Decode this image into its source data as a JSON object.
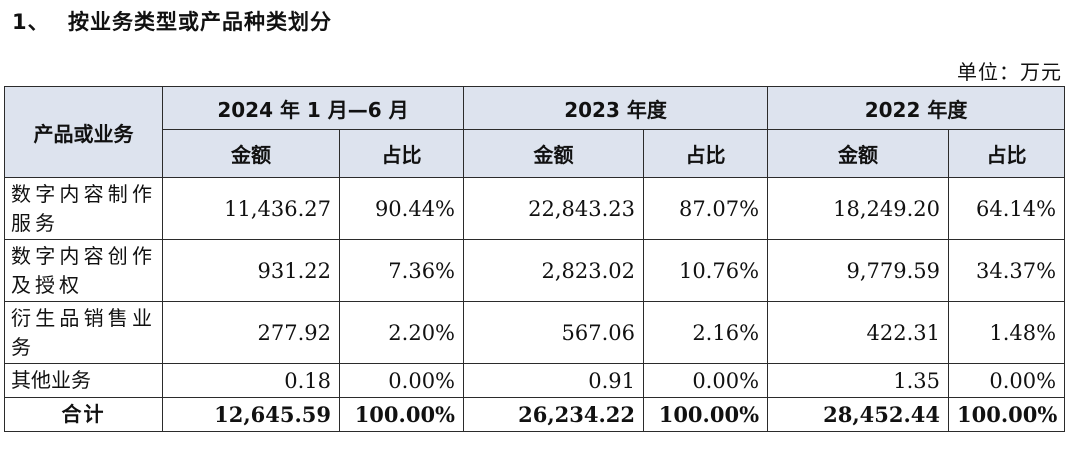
{
  "heading": {
    "number": "1、",
    "title": "按业务类型或产品种类划分"
  },
  "unit": "单位：万元",
  "table": {
    "row_header": "产品或业务",
    "periods": [
      "2024 年 1 月—6 月",
      "2023 年度",
      "2022 年度"
    ],
    "sub_headers": [
      "金额",
      "占比",
      "金额",
      "占比",
      "金额",
      "占比"
    ],
    "rows": [
      {
        "name": "数字内容制作服务",
        "cells": [
          "11,436.27",
          "90.44%",
          "22,843.23",
          "87.07%",
          "18,249.20",
          "64.14%"
        ]
      },
      {
        "name": "数字内容创作及授权",
        "cells": [
          "931.22",
          "7.36%",
          "2,823.02",
          "10.76%",
          "9,779.59",
          "34.37%"
        ]
      },
      {
        "name": "衍生品销售业务",
        "cells": [
          "277.92",
          "2.20%",
          "567.06",
          "2.16%",
          "422.31",
          "1.48%"
        ]
      },
      {
        "name": "其他业务",
        "cells": [
          "0.18",
          "0.00%",
          "0.91",
          "0.00%",
          "1.35",
          "0.00%"
        ]
      }
    ],
    "total": {
      "name": "合计",
      "cells": [
        "12,645.59",
        "100.00%",
        "26,234.22",
        "100.00%",
        "28,452.44",
        "100.00%"
      ]
    }
  }
}
